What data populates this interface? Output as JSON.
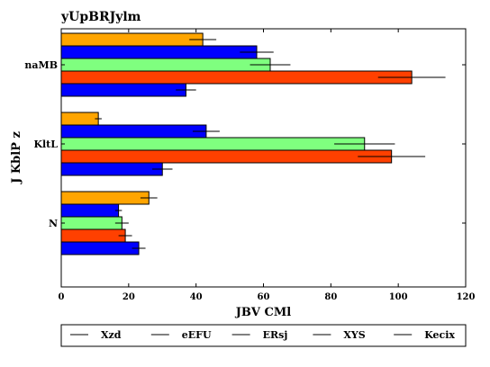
{
  "chart_data": {
    "type": "bar",
    "orientation": "horizontal",
    "title": "yUpBRJylm",
    "xlabel": "JBV CMl",
    "ylabel": "J KblP z",
    "categories": [
      "naMB",
      "KltL",
      "N"
    ],
    "xlim": [
      0,
      120
    ],
    "xticks": [
      0,
      20,
      40,
      60,
      80,
      100,
      120
    ],
    "grid": false,
    "legend_position": "bottom",
    "series": [
      {
        "name": "Xzd",
        "color": "#ffa500",
        "values": [
          42,
          11,
          26
        ],
        "errors": [
          4,
          1,
          2.5
        ]
      },
      {
        "name": "eEFU",
        "color": "#0000ff",
        "values": [
          58,
          43,
          17
        ],
        "errors": [
          5,
          4,
          1
        ]
      },
      {
        "name": "ERsj",
        "color": "#7fff7f",
        "values": [
          62,
          90,
          18
        ],
        "errors": [
          6,
          9,
          2
        ]
      },
      {
        "name": "XYS",
        "color": "#ff4000",
        "values": [
          104,
          98,
          19
        ],
        "errors": [
          10,
          10,
          2
        ]
      },
      {
        "name": "Kecix",
        "color": "#0000ff",
        "values": [
          37,
          30,
          23
        ],
        "errors": [
          3,
          3,
          2
        ]
      }
    ]
  }
}
